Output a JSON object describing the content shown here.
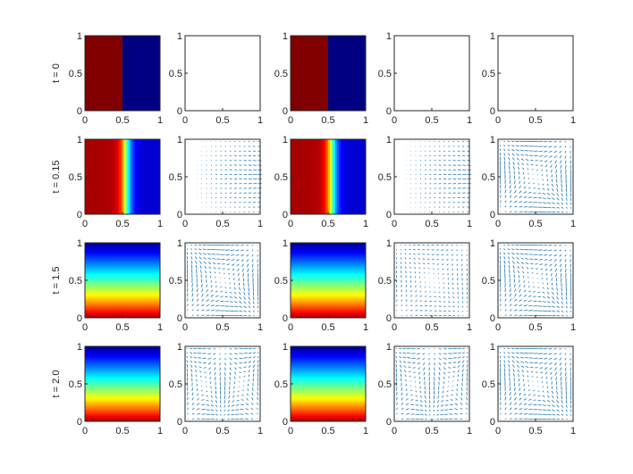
{
  "figure": {
    "columns": 5,
    "rows": [
      "t = 0",
      "t = 0.15",
      "t = 1.5",
      "t = 2.0"
    ],
    "tick_values": [
      0,
      0.5,
      1
    ],
    "tick_labels": [
      "0",
      "0.5",
      "1"
    ],
    "colors": {
      "axis": "#262626",
      "quiver": "#1f77b4",
      "colormap": "jet"
    }
  },
  "chart_data": {
    "type": "heatmap",
    "title": "",
    "xlabel": "",
    "ylabel": "",
    "xlim": [
      0,
      1
    ],
    "ylim": [
      0,
      1
    ],
    "grid": false,
    "panel_kinds": [
      "field",
      "velocity",
      "field",
      "velocity",
      "velocity"
    ],
    "rows": [
      {
        "label": "t = 0",
        "field": "step",
        "field_description": "left half (x < 0.5) high value, right half low value",
        "velocity_fields": [
          "zero",
          "zero",
          "zero"
        ]
      },
      {
        "label": "t = 0.15",
        "field": "front",
        "field_description": "high value left, sharp front near x ≈ 0.5 decreasing to low value at right",
        "velocity_fields": [
          "horizontal-flow",
          "horizontal-flow",
          "single-vortex"
        ]
      },
      {
        "label": "t = 1.5",
        "field": "stratified",
        "field_description": "high value at bottom (y = 0), low value at top (y = 1)",
        "velocity_fields": [
          "single-vortex",
          "weak-vortex",
          "single-vortex"
        ]
      },
      {
        "label": "t = 2.0",
        "field": "stratified",
        "field_description": "high value at bottom (y = 0), low value at top (y = 1)",
        "velocity_fields": [
          "double-vortex",
          "double-vortex",
          "single-vortex"
        ]
      }
    ]
  }
}
